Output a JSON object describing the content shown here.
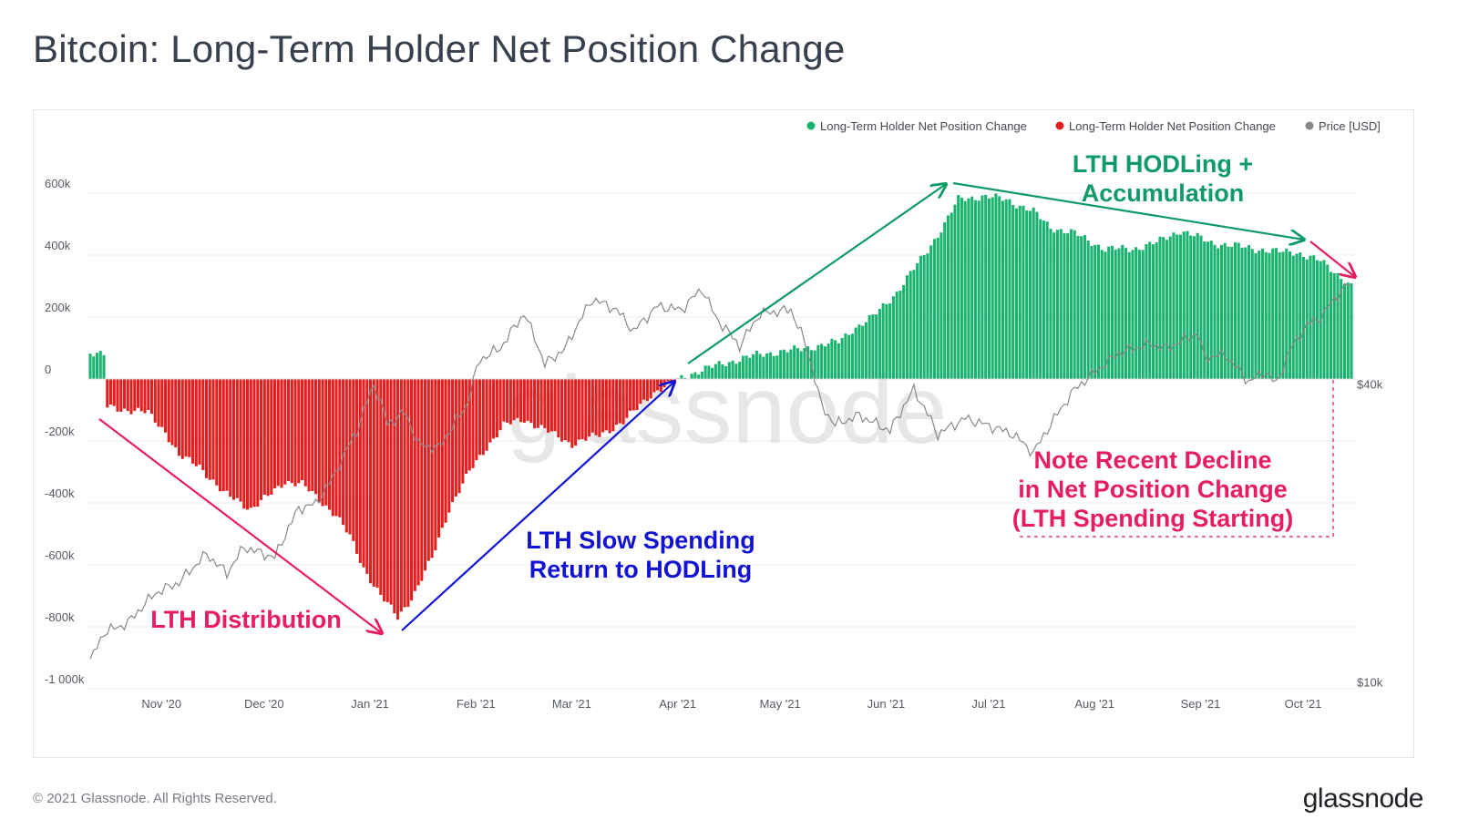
{
  "page": {
    "title": "Bitcoin: Long-Term Holder Net Position Change",
    "copyright": "© 2021 Glassnode. All Rights Reserved.",
    "logo": "glassnode",
    "watermark": "glassnode"
  },
  "chart_data": {
    "type": "bar",
    "title": "Bitcoin: Long-Term Holder Net Position Change",
    "legend": [
      {
        "label": "Long-Term Holder Net Position Change",
        "color": "#1ab26f"
      },
      {
        "label": "Long-Term Holder Net Position Change",
        "color": "#e11f1f"
      },
      {
        "label": "Price [USD]",
        "color": "#888888"
      }
    ],
    "legend_position": "top-right",
    "grid": true,
    "y_left": {
      "ticks": [
        "600k",
        "400k",
        "200k",
        "0",
        "-200k",
        "-400k",
        "-600k",
        "-800k",
        "-1 000k"
      ],
      "tick_values": [
        600000,
        400000,
        200000,
        0,
        -200000,
        -400000,
        -600000,
        -800000,
        -1000000
      ],
      "range": [
        -1000000,
        700000
      ]
    },
    "y_right": {
      "ticks": [
        "$40k",
        "$10k"
      ],
      "tick_values": [
        40000,
        10000
      ],
      "scale": "log"
    },
    "x_ticks": [
      "Nov '20",
      "Dec '20",
      "Jan '21",
      "Feb '21",
      "Mar '21",
      "Apr '21",
      "May '21",
      "Jun '21",
      "Jul '21",
      "Aug '21",
      "Sep '21",
      "Oct '21"
    ],
    "x_range": [
      "2020-10-17",
      "2021-10-21"
    ],
    "net_position_keypoints": [
      [
        "2020-10-17",
        85000
      ],
      [
        "2020-10-21",
        75000
      ],
      [
        "2020-10-22",
        -90000
      ],
      [
        "2020-10-28",
        -100000
      ],
      [
        "2020-11-03",
        -110000
      ],
      [
        "2020-11-08",
        -170000
      ],
      [
        "2020-11-12",
        -250000
      ],
      [
        "2020-11-18",
        -280000
      ],
      [
        "2020-11-25",
        -370000
      ],
      [
        "2020-11-29",
        -390000
      ],
      [
        "2020-12-03",
        -420000
      ],
      [
        "2020-12-08",
        -380000
      ],
      [
        "2020-12-13",
        -330000
      ],
      [
        "2020-12-18",
        -340000
      ],
      [
        "2020-12-24",
        -400000
      ],
      [
        "2020-12-28",
        -440000
      ],
      [
        "2021-01-01",
        -510000
      ],
      [
        "2021-01-05",
        -610000
      ],
      [
        "2021-01-10",
        -700000
      ],
      [
        "2021-01-15",
        -770000
      ],
      [
        "2021-01-20",
        -690000
      ],
      [
        "2021-01-25",
        -580000
      ],
      [
        "2021-01-30",
        -420000
      ],
      [
        "2021-02-05",
        -300000
      ],
      [
        "2021-02-10",
        -220000
      ],
      [
        "2021-02-15",
        -150000
      ],
      [
        "2021-02-21",
        -130000
      ],
      [
        "2021-02-28",
        -170000
      ],
      [
        "2021-03-07",
        -210000
      ],
      [
        "2021-03-15",
        -180000
      ],
      [
        "2021-03-22",
        -140000
      ],
      [
        "2021-03-30",
        -50000
      ],
      [
        "2021-04-05",
        -15000
      ],
      [
        "2021-04-09",
        10000
      ],
      [
        "2021-04-20",
        50000
      ],
      [
        "2021-05-01",
        80000
      ],
      [
        "2021-05-12",
        95000
      ],
      [
        "2021-05-24",
        120000
      ],
      [
        "2021-05-28",
        160000
      ],
      [
        "2021-06-03",
        200000
      ],
      [
        "2021-06-10",
        280000
      ],
      [
        "2021-06-18",
        400000
      ],
      [
        "2021-06-24",
        500000
      ],
      [
        "2021-06-28",
        580000
      ],
      [
        "2021-07-05",
        590000
      ],
      [
        "2021-07-12",
        580000
      ],
      [
        "2021-07-20",
        540000
      ],
      [
        "2021-07-25",
        490000
      ],
      [
        "2021-08-01",
        470000
      ],
      [
        "2021-08-10",
        420000
      ],
      [
        "2021-08-18",
        420000
      ],
      [
        "2021-08-25",
        440000
      ],
      [
        "2021-09-01",
        480000
      ],
      [
        "2021-09-10",
        440000
      ],
      [
        "2021-09-20",
        425000
      ],
      [
        "2021-09-30",
        410000
      ],
      [
        "2021-10-05",
        410000
      ],
      [
        "2021-10-12",
        380000
      ],
      [
        "2021-10-18",
        330000
      ],
      [
        "2021-10-21",
        300000
      ]
    ],
    "price_keypoints": [
      [
        "2020-10-17",
        11300
      ],
      [
        "2020-10-21",
        12900
      ],
      [
        "2020-10-28",
        13500
      ],
      [
        "2020-11-05",
        15500
      ],
      [
        "2020-11-12",
        16300
      ],
      [
        "2020-11-20",
        18600
      ],
      [
        "2020-11-26",
        17000
      ],
      [
        "2020-12-01",
        19200
      ],
      [
        "2020-12-10",
        18300
      ],
      [
        "2020-12-17",
        23000
      ],
      [
        "2020-12-22",
        23500
      ],
      [
        "2020-12-27",
        26500
      ],
      [
        "2021-01-03",
        33000
      ],
      [
        "2021-01-08",
        41000
      ],
      [
        "2021-01-12",
        34000
      ],
      [
        "2021-01-17",
        36000
      ],
      [
        "2021-01-21",
        31000
      ],
      [
        "2021-01-27",
        30500
      ],
      [
        "2021-02-04",
        37000
      ],
      [
        "2021-02-08",
        46000
      ],
      [
        "2021-02-14",
        48500
      ],
      [
        "2021-02-21",
        57000
      ],
      [
        "2021-02-27",
        45000
      ],
      [
        "2021-03-05",
        48500
      ],
      [
        "2021-03-13",
        61000
      ],
      [
        "2021-03-20",
        58000
      ],
      [
        "2021-03-25",
        52500
      ],
      [
        "2021-04-01",
        59000
      ],
      [
        "2021-04-08",
        58000
      ],
      [
        "2021-04-14",
        64000
      ],
      [
        "2021-04-18",
        56000
      ],
      [
        "2021-04-25",
        49000
      ],
      [
        "2021-05-01",
        57000
      ],
      [
        "2021-05-10",
        58000
      ],
      [
        "2021-05-14",
        50000
      ],
      [
        "2021-05-19",
        37000
      ],
      [
        "2021-05-23",
        34000
      ],
      [
        "2021-05-30",
        35500
      ],
      [
        "2021-06-08",
        33000
      ],
      [
        "2021-06-15",
        40000
      ],
      [
        "2021-06-22",
        32500
      ],
      [
        "2021-06-30",
        35000
      ],
      [
        "2021-07-06",
        34000
      ],
      [
        "2021-07-14",
        32500
      ],
      [
        "2021-07-20",
        29800
      ],
      [
        "2021-07-25",
        34000
      ],
      [
        "2021-08-01",
        40000
      ],
      [
        "2021-08-08",
        44000
      ],
      [
        "2021-08-14",
        47500
      ],
      [
        "2021-08-23",
        49500
      ],
      [
        "2021-08-28",
        48500
      ],
      [
        "2021-09-06",
        52000
      ],
      [
        "2021-09-08",
        46500
      ],
      [
        "2021-09-14",
        47000
      ],
      [
        "2021-09-21",
        41500
      ],
      [
        "2021-09-26",
        43500
      ],
      [
        "2021-09-29",
        41000
      ],
      [
        "2021-10-03",
        48000
      ],
      [
        "2021-10-08",
        54000
      ],
      [
        "2021-10-12",
        56000
      ],
      [
        "2021-10-16",
        61000
      ],
      [
        "2021-10-20",
        65500
      ],
      [
        "2021-10-21",
        64000
      ]
    ],
    "annotations": [
      {
        "text_lines": [
          "LTH Distribution"
        ],
        "color": "#e81c62"
      },
      {
        "text_lines": [
          "LTH Slow Spending",
          "Return to HODLing"
        ],
        "color": "#1212d6"
      },
      {
        "text_lines": [
          "LTH HODLing +",
          "Accumulation"
        ],
        "color": "#0f9a67"
      },
      {
        "text_lines": [
          "Note Recent Decline",
          "in Net Position Change",
          "(LTH Spending Starting)"
        ],
        "color": "#e81c62"
      }
    ]
  }
}
